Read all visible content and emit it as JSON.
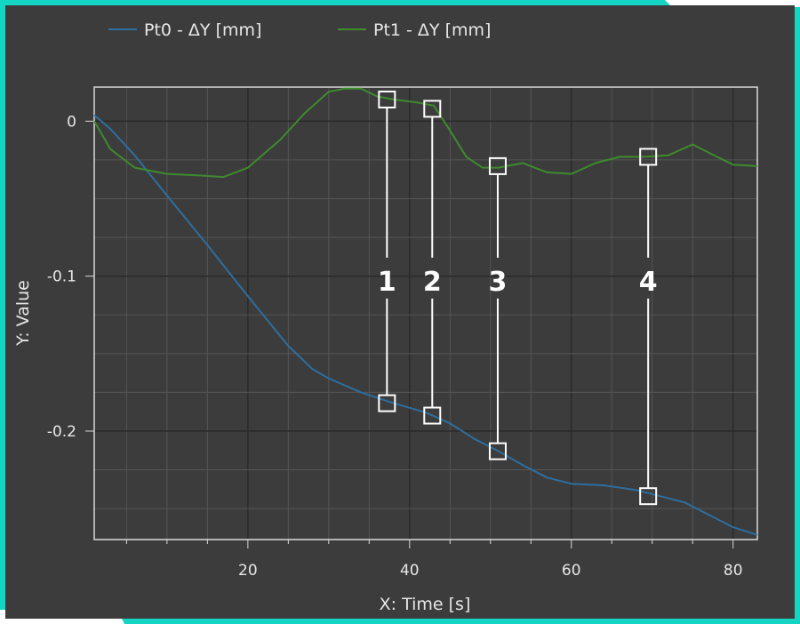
{
  "colors": {
    "accent": "#14d4c4",
    "background": "#3c3c3c",
    "grid": "#555555",
    "axis": "#d9d9d9",
    "text": "#e6e6e6",
    "marker": "#ffffff"
  },
  "chart_data": {
    "type": "line",
    "title": "",
    "xlabel": "X: Time [s]",
    "ylabel": "Y: Value",
    "xlim": [
      1,
      83
    ],
    "ylim": [
      -0.27,
      0.022
    ],
    "grid": true,
    "legend_position": "top-left",
    "x_ticks": [
      {
        "value": 20,
        "label": "20"
      },
      {
        "value": 40,
        "label": "40"
      },
      {
        "value": 60,
        "label": "60"
      },
      {
        "value": 80,
        "label": "80"
      }
    ],
    "y_ticks": [
      {
        "value": 0,
        "label": "0"
      },
      {
        "value": -0.1,
        "label": "-0.1"
      },
      {
        "value": -0.2,
        "label": "-0.2"
      }
    ],
    "series": [
      {
        "name": "Pt0 -  ΔY [mm]",
        "color": "#2e6e9e",
        "x": [
          1,
          3,
          6,
          10,
          15,
          20,
          25,
          28,
          30,
          34,
          38,
          42,
          45,
          48,
          51,
          54,
          57,
          60,
          64,
          68,
          71,
          74,
          77,
          80,
          83
        ],
        "y": [
          0.004,
          -0.005,
          -0.022,
          -0.048,
          -0.08,
          -0.113,
          -0.145,
          -0.16,
          -0.166,
          -0.175,
          -0.182,
          -0.188,
          -0.195,
          -0.205,
          -0.213,
          -0.222,
          -0.23,
          -0.234,
          -0.235,
          -0.238,
          -0.242,
          -0.246,
          -0.254,
          -0.262,
          -0.267
        ]
      },
      {
        "name": "Pt1 -  ΔY [mm]",
        "color": "#3f8a2e",
        "x": [
          1,
          3,
          6,
          10,
          14,
          17,
          20,
          24,
          27,
          30,
          32,
          34,
          36,
          38,
          41,
          43,
          45,
          47,
          49,
          51,
          54,
          57,
          60,
          63,
          66,
          69,
          72,
          75,
          78,
          80,
          83
        ],
        "y": [
          0.0,
          -0.018,
          -0.03,
          -0.034,
          -0.035,
          -0.036,
          -0.03,
          -0.012,
          0.005,
          0.019,
          0.021,
          0.021,
          0.016,
          0.014,
          0.012,
          0.01,
          -0.006,
          -0.023,
          -0.03,
          -0.03,
          -0.027,
          -0.033,
          -0.034,
          -0.027,
          -0.023,
          -0.023,
          -0.022,
          -0.015,
          -0.023,
          -0.028,
          -0.029
        ]
      }
    ],
    "annotations": [
      {
        "label": "1",
        "x": 37.2,
        "y_top": 0.014,
        "y_bottom": -0.182
      },
      {
        "label": "2",
        "x": 42.8,
        "y_top": 0.008,
        "y_bottom": -0.19
      },
      {
        "label": "3",
        "x": 50.9,
        "y_top": -0.029,
        "y_bottom": -0.213
      },
      {
        "label": "4",
        "x": 69.5,
        "y_top": -0.023,
        "y_bottom": -0.242
      }
    ]
  }
}
